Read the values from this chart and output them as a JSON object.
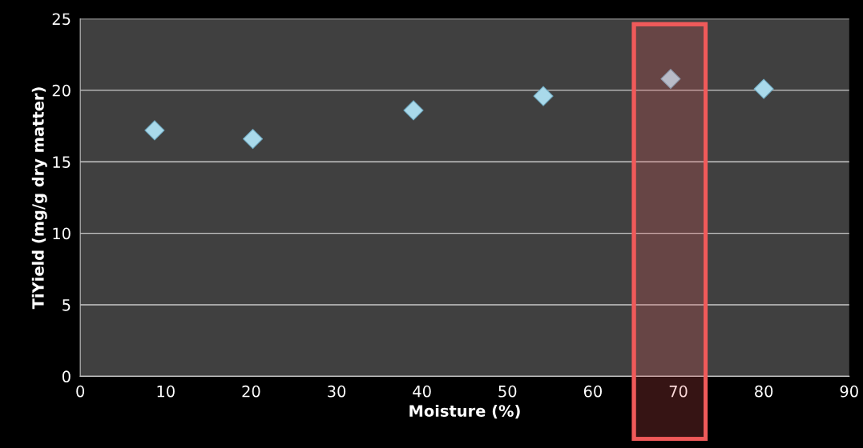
{
  "chart_data": {
    "type": "scatter",
    "xlabel": "Moisture (%)",
    "ylabel": "TiYield (mg/g dry matter)",
    "x": [
      8.7,
      20.2,
      39.0,
      54.2,
      69.1,
      80.0
    ],
    "series": [
      {
        "color": "#a9d9ea",
        "values": [
          17.2,
          16.6,
          18.6,
          19.6,
          20.8,
          20.1
        ]
      }
    ],
    "xlim": [
      0,
      90
    ],
    "xticks": [
      0,
      10,
      20,
      30,
      40,
      50,
      60,
      70,
      80,
      90
    ],
    "ylim": [
      0,
      25
    ],
    "yticks": [
      0,
      5,
      10,
      15,
      20,
      25
    ],
    "grid": "y",
    "marker": "diamond",
    "legend": false,
    "bands": [
      {
        "axis": "x",
        "from": 64.8,
        "to": 73.2,
        "color": "#f05a5a"
      }
    ]
  }
}
